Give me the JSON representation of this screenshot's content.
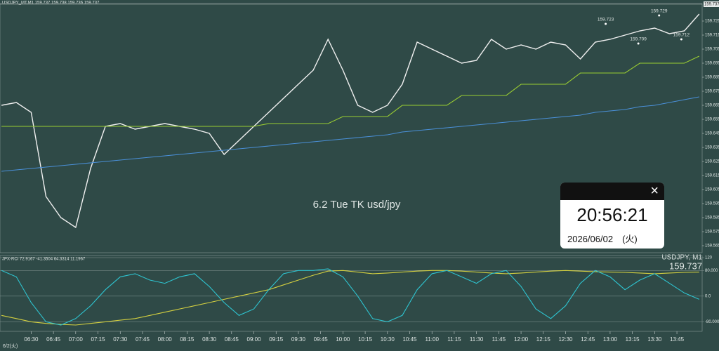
{
  "chart_data": [
    {
      "type": "line",
      "title": "USDJPY_MT,M1  159.737 159.738 159.736 159.737",
      "annotation": "6.2 Tue TK usd/jpy",
      "date": "6/2(火)",
      "last": 159.737,
      "x": [
        370,
        380,
        390,
        400,
        410,
        420,
        430,
        440,
        450,
        460,
        470,
        480,
        490,
        500,
        510,
        520,
        530,
        540,
        550,
        560,
        570,
        580,
        590,
        600,
        610,
        620,
        630,
        640,
        650,
        660,
        670,
        680,
        690,
        700,
        710,
        720,
        730,
        740,
        750,
        760,
        770,
        780,
        790,
        800,
        810,
        820,
        830,
        840
      ],
      "series": [
        {
          "color": "#f0f0f0",
          "values": [
            159.665,
            159.667,
            159.66,
            159.6,
            159.585,
            159.578,
            159.62,
            159.65,
            159.652,
            159.648,
            159.65,
            159.652,
            159.65,
            159.648,
            159.645,
            159.63,
            159.64,
            159.65,
            159.66,
            159.67,
            159.68,
            159.69,
            159.712,
            159.69,
            159.665,
            159.66,
            159.665,
            159.68,
            159.71,
            159.705,
            159.7,
            159.695,
            159.697,
            159.712,
            159.705,
            159.708,
            159.705,
            159.71,
            159.708,
            159.698,
            159.71,
            159.712,
            159.715,
            159.718,
            159.72,
            159.716,
            159.718,
            159.73
          ]
        },
        {
          "color": "#4a90d9",
          "values": [
            159.618,
            159.619,
            159.62,
            159.621,
            159.622,
            159.623,
            159.624,
            159.625,
            159.626,
            159.627,
            159.628,
            159.629,
            159.63,
            159.631,
            159.632,
            159.633,
            159.634,
            159.635,
            159.636,
            159.637,
            159.638,
            159.639,
            159.64,
            159.641,
            159.642,
            159.643,
            159.644,
            159.646,
            159.647,
            159.648,
            159.649,
            159.65,
            159.651,
            159.652,
            159.653,
            159.654,
            159.655,
            159.656,
            159.657,
            159.658,
            159.66,
            159.661,
            159.662,
            159.664,
            159.665,
            159.667,
            159.669,
            159.671
          ]
        },
        {
          "color": "#9acd32",
          "values": [
            159.65,
            159.65,
            159.65,
            159.65,
            159.65,
            159.65,
            159.65,
            159.65,
            159.65,
            159.65,
            159.65,
            159.65,
            159.65,
            159.65,
            159.65,
            159.65,
            159.65,
            159.65,
            159.652,
            159.652,
            159.652,
            159.652,
            159.652,
            159.657,
            159.657,
            159.657,
            159.657,
            159.665,
            159.665,
            159.665,
            159.665,
            159.672,
            159.672,
            159.672,
            159.672,
            159.68,
            159.68,
            159.68,
            159.68,
            159.688,
            159.688,
            159.688,
            159.688,
            159.695,
            159.695,
            159.695,
            159.695,
            159.7
          ]
        }
      ],
      "price_marks": [
        {
          "x": 777,
          "y": 159.723
        },
        {
          "x": 813,
          "y": 159.729
        },
        {
          "x": 799,
          "y": 159.709
        },
        {
          "x": 828,
          "y": 159.712
        }
      ],
      "xlim": [
        369,
        842
      ],
      "ylim": [
        159.56,
        159.7375
      ],
      "yticks": [
        159.565,
        159.575,
        159.585,
        159.595,
        159.605,
        159.615,
        159.625,
        159.635,
        159.645,
        159.655,
        159.665,
        159.675,
        159.685,
        159.695,
        159.705,
        159.715,
        159.725
      ],
      "xticks": [
        {
          "value": 390,
          "label": "06:30"
        },
        {
          "value": 405,
          "label": "06:45"
        },
        {
          "value": 420,
          "label": "07:00"
        },
        {
          "value": 435,
          "label": "07:15"
        },
        {
          "value": 450,
          "label": "07:30"
        },
        {
          "value": 465,
          "label": "07:45"
        },
        {
          "value": 480,
          "label": "08:00"
        },
        {
          "value": 495,
          "label": "08:15"
        },
        {
          "value": 510,
          "label": "08:30"
        },
        {
          "value": 525,
          "label": "08:45"
        },
        {
          "value": 540,
          "label": "09:00"
        },
        {
          "value": 555,
          "label": "09:15"
        },
        {
          "value": 570,
          "label": "09:30"
        },
        {
          "value": 585,
          "label": "09:45"
        },
        {
          "value": 600,
          "label": "10:00"
        },
        {
          "value": 615,
          "label": "10:15"
        },
        {
          "value": 630,
          "label": "10:30"
        },
        {
          "value": 645,
          "label": "10:45"
        },
        {
          "value": 660,
          "label": "11:00"
        },
        {
          "value": 675,
          "label": "11:15"
        },
        {
          "value": 690,
          "label": "11:30"
        },
        {
          "value": 705,
          "label": "11:45"
        },
        {
          "value": 720,
          "label": "12:00"
        },
        {
          "value": 735,
          "label": "12:15"
        },
        {
          "value": 750,
          "label": "12:30"
        },
        {
          "value": 765,
          "label": "12:45"
        },
        {
          "value": 780,
          "label": "13:00"
        },
        {
          "value": 795,
          "label": "13:15"
        },
        {
          "value": 810,
          "label": "13:30"
        },
        {
          "value": 825,
          "label": "13:45"
        }
      ]
    },
    {
      "type": "line",
      "title": "JPX-RCI 72.9167 -41.3504 64.3314 11.1967",
      "symbol": "USDJPY, M1",
      "x": [
        370,
        380,
        390,
        400,
        410,
        420,
        430,
        440,
        450,
        460,
        470,
        480,
        490,
        500,
        510,
        520,
        530,
        540,
        550,
        560,
        570,
        580,
        590,
        600,
        610,
        620,
        630,
        640,
        650,
        660,
        670,
        680,
        690,
        700,
        710,
        720,
        730,
        740,
        750,
        760,
        770,
        780,
        790,
        800,
        810,
        820,
        830,
        840
      ],
      "series": [
        {
          "color": "#d4d040",
          "values": [
            -60,
            -70,
            -80,
            -85,
            -88,
            -90,
            -85,
            -80,
            -75,
            -70,
            -60,
            -50,
            -40,
            -30,
            -20,
            -10,
            0,
            10,
            20,
            35,
            50,
            65,
            78,
            80,
            75,
            70,
            72,
            75,
            78,
            80,
            80,
            78,
            75,
            72,
            70,
            72,
            75,
            78,
            80,
            78,
            76,
            75,
            74,
            72,
            70,
            72,
            74,
            75
          ]
        },
        {
          "color": "#2ec4d0",
          "values": [
            80,
            60,
            -20,
            -80,
            -90,
            -70,
            -30,
            20,
            60,
            70,
            50,
            40,
            60,
            70,
            30,
            -20,
            -60,
            -40,
            20,
            70,
            80,
            80,
            85,
            60,
            0,
            -70,
            -80,
            -60,
            20,
            70,
            80,
            60,
            40,
            70,
            80,
            30,
            -40,
            -70,
            -30,
            40,
            80,
            60,
            20,
            50,
            70,
            40,
            10,
            -10
          ]
        }
      ],
      "xlim": [
        369,
        842
      ],
      "ylim": [
        -101,
        120
      ],
      "yticks": [
        120,
        {
          "value": 80,
          "label": "80.000"
        },
        {
          "value": 0,
          "label": "0.0"
        },
        {
          "value": -80,
          "label": "-80.000"
        }
      ]
    }
  ],
  "clock": {
    "time": "20:56:21",
    "date": "2026/06/02　(火)"
  }
}
